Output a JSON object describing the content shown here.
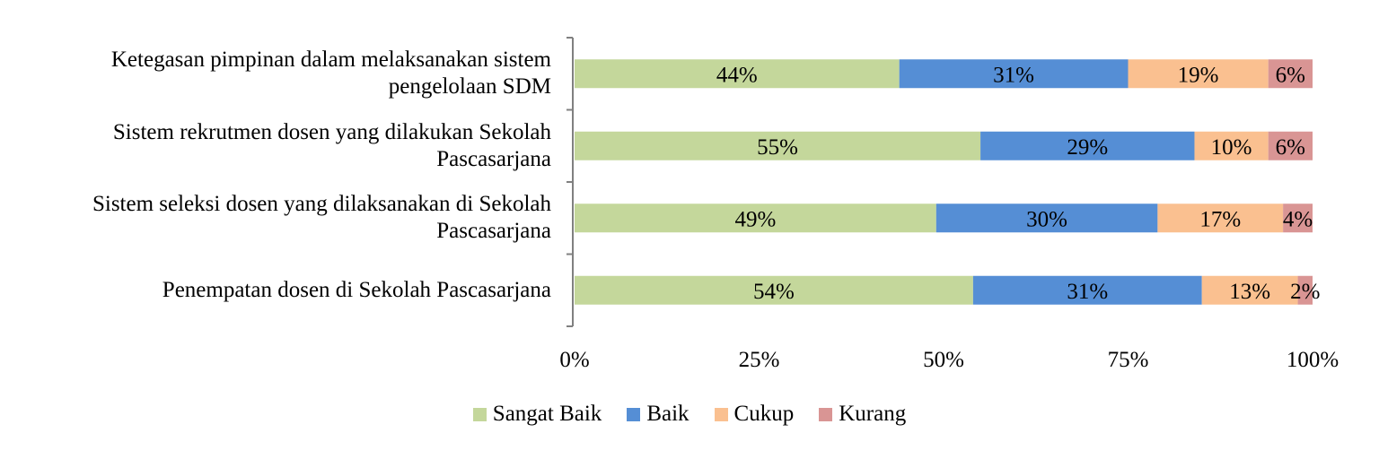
{
  "chart_data": {
    "type": "bar",
    "orientation": "horizontal",
    "stacked": "percent",
    "categories": [
      [
        "Ketegasan pimpinan dalam melaksanakan sistem",
        "pengelolaan SDM"
      ],
      [
        "Sistem rekrutmen dosen yang dilakukan Sekolah",
        "Pascasarjana"
      ],
      [
        "Sistem seleksi dosen yang dilaksanakan di Sekolah",
        "Pascasarjana"
      ],
      [
        "Penempatan dosen di Sekolah Pascasarjana"
      ]
    ],
    "series": [
      {
        "name": "Sangat Baik",
        "color": "#c4d79b",
        "values": [
          44,
          55,
          49,
          54
        ],
        "labels": [
          "44%",
          "55%",
          "49%",
          "54%"
        ]
      },
      {
        "name": "Baik",
        "color": "#558ed5",
        "values": [
          31,
          29,
          30,
          31
        ],
        "labels": [
          "31%",
          "29%",
          "30%",
          "31%"
        ]
      },
      {
        "name": "Cukup",
        "color": "#fac090",
        "values": [
          19,
          10,
          17,
          13
        ],
        "labels": [
          "19%",
          "10%",
          "17%",
          "13%"
        ]
      },
      {
        "name": "Kurang",
        "color": "#d99594",
        "values": [
          6,
          6,
          4,
          2
        ],
        "labels": [
          "6%",
          "6%",
          "4%",
          "2%"
        ]
      }
    ],
    "xlim": [
      0,
      100
    ],
    "xticks": [
      "0%",
      "25%",
      "50%",
      "75%",
      "100%"
    ],
    "grid": false,
    "legend_position": "bottom"
  }
}
